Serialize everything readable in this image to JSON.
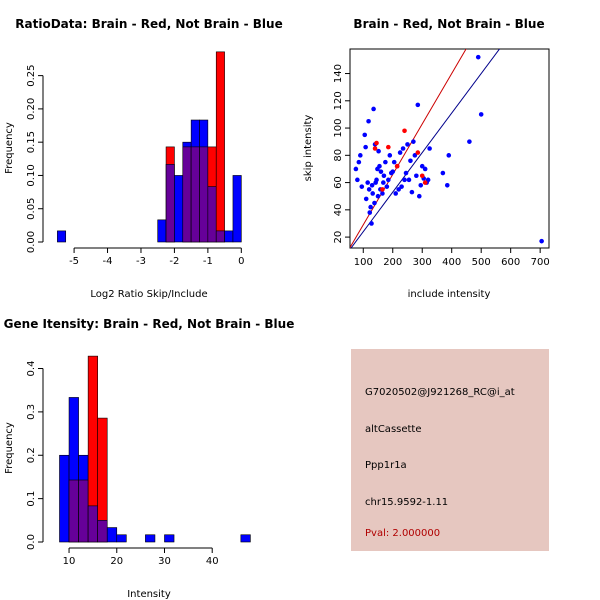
{
  "colors": {
    "brain": "#ff0000",
    "not_brain": "#0000ff",
    "overlap": "#660099",
    "panel_bg": "#e6c7c0",
    "pval_text": "#b00000"
  },
  "chart_data": [
    {
      "type": "bar",
      "title": "RatioData: Brain - Red, Not Brain - Blue",
      "xlabel": "Log2 Ratio Skip/Include",
      "ylabel": "Frequency",
      "xlim": [
        -5.75,
        0.2
      ],
      "ylim": [
        0,
        0.29
      ],
      "x_ticks": [
        -5,
        -4,
        -3,
        -2,
        -1,
        0
      ],
      "y_ticks": [
        0.0,
        0.05,
        0.1,
        0.15,
        0.2,
        0.25
      ],
      "y_tick_labels": [
        "0.00",
        "0.05",
        "0.10",
        "0.15",
        "0.20",
        "0.25"
      ],
      "bin_width": 0.25,
      "series": [
        {
          "name": "Not Brain",
          "color": "blue",
          "bins": [
            {
              "start": -5.5,
              "value": 0.0167
            },
            {
              "start": -2.5,
              "value": 0.0333
            },
            {
              "start": -2.25,
              "value": 0.1167
            },
            {
              "start": -2.0,
              "value": 0.1
            },
            {
              "start": -1.75,
              "value": 0.15
            },
            {
              "start": -1.5,
              "value": 0.1833
            },
            {
              "start": -1.25,
              "value": 0.1833
            },
            {
              "start": -1.0,
              "value": 0.0833
            },
            {
              "start": -0.75,
              "value": 0.0167
            },
            {
              "start": -0.5,
              "value": 0.0167
            },
            {
              "start": -0.25,
              "value": 0.1
            }
          ]
        },
        {
          "name": "Brain",
          "color": "red",
          "bins": [
            {
              "start": -2.25,
              "value": 0.1429
            },
            {
              "start": -1.75,
              "value": 0.1429
            },
            {
              "start": -1.5,
              "value": 0.1429
            },
            {
              "start": -1.25,
              "value": 0.1429
            },
            {
              "start": -1.0,
              "value": 0.1429
            },
            {
              "start": -0.75,
              "value": 0.2857
            }
          ]
        }
      ]
    },
    {
      "type": "scatter",
      "title": "Brain - Red, Not Brain - Blue",
      "xlabel": "include intensity",
      "ylabel": "skip intensity",
      "xlim": [
        55,
        730
      ],
      "ylim": [
        12,
        158
      ],
      "x_ticks": [
        100,
        200,
        300,
        400,
        500,
        600,
        700
      ],
      "y_ticks": [
        20,
        40,
        60,
        80,
        100,
        120,
        140
      ],
      "lines": [
        {
          "name": "Brain fit",
          "color": "red",
          "slope": 0.37,
          "intercept": -8
        },
        {
          "name": "Not Brain fit",
          "color": "blue",
          "slope": 0.29,
          "intercept": -5
        }
      ],
      "series": [
        {
          "name": "Not Brain",
          "color": "blue",
          "points": [
            [
              75,
              70
            ],
            [
              80,
              62
            ],
            [
              85,
              75
            ],
            [
              90,
              80
            ],
            [
              95,
              57
            ],
            [
              105,
              95
            ],
            [
              108,
              86
            ],
            [
              110,
              48
            ],
            [
              115,
              60
            ],
            [
              118,
              105
            ],
            [
              120,
              55
            ],
            [
              122,
              38
            ],
            [
              125,
              42
            ],
            [
              128,
              30
            ],
            [
              130,
              58
            ],
            [
              132,
              52
            ],
            [
              135,
              114
            ],
            [
              138,
              45
            ],
            [
              140,
              88
            ],
            [
              142,
              60
            ],
            [
              145,
              62
            ],
            [
              148,
              70
            ],
            [
              150,
              50
            ],
            [
              152,
              83
            ],
            [
              155,
              72
            ],
            [
              158,
              55
            ],
            [
              160,
              68
            ],
            [
              165,
              52
            ],
            [
              168,
              60
            ],
            [
              170,
              65
            ],
            [
              175,
              75
            ],
            [
              180,
              57
            ],
            [
              185,
              62
            ],
            [
              190,
              80
            ],
            [
              195,
              67
            ],
            [
              200,
              68
            ],
            [
              205,
              75
            ],
            [
              210,
              52
            ],
            [
              215,
              72
            ],
            [
              220,
              55
            ],
            [
              225,
              82
            ],
            [
              230,
              57
            ],
            [
              235,
              85
            ],
            [
              240,
              62
            ],
            [
              245,
              67
            ],
            [
              250,
              88
            ],
            [
              255,
              62
            ],
            [
              260,
              76
            ],
            [
              265,
              53
            ],
            [
              270,
              90
            ],
            [
              275,
              80
            ],
            [
              280,
              65
            ],
            [
              285,
              117
            ],
            [
              290,
              50
            ],
            [
              295,
              58
            ],
            [
              300,
              72
            ],
            [
              305,
              63
            ],
            [
              310,
              70
            ],
            [
              315,
              60
            ],
            [
              320,
              62
            ],
            [
              325,
              85
            ],
            [
              370,
              67
            ],
            [
              385,
              58
            ],
            [
              390,
              80
            ],
            [
              460,
              90
            ],
            [
              490,
              152
            ],
            [
              500,
              110
            ],
            [
              705,
              17
            ]
          ]
        },
        {
          "name": "Brain",
          "color": "red",
          "points": [
            [
              140,
              85
            ],
            [
              145,
              89
            ],
            [
              165,
              55
            ],
            [
              185,
              86
            ],
            [
              215,
              72
            ],
            [
              240,
              98
            ],
            [
              285,
              82
            ],
            [
              300,
              65
            ],
            [
              310,
              60
            ]
          ]
        }
      ]
    },
    {
      "type": "bar",
      "title": "Gene Itensity: Brain - Red, Not Brain - Blue",
      "xlabel": "Intensity",
      "ylabel": "Frequency",
      "xlim": [
        5.8,
        47.5
      ],
      "ylim": [
        0,
        0.445
      ],
      "x_ticks": [
        10,
        20,
        30,
        40
      ],
      "y_ticks": [
        0.0,
        0.1,
        0.2,
        0.3,
        0.4
      ],
      "y_tick_labels": [
        "0.0",
        "0.1",
        "0.2",
        "0.3",
        "0.4"
      ],
      "bin_width": 2,
      "series": [
        {
          "name": "Not Brain",
          "color": "blue",
          "bins": [
            {
              "start": 8,
              "value": 0.2
            },
            {
              "start": 10,
              "value": 0.3333
            },
            {
              "start": 12,
              "value": 0.2
            },
            {
              "start": 14,
              "value": 0.0833
            },
            {
              "start": 16,
              "value": 0.05
            },
            {
              "start": 18,
              "value": 0.0333
            },
            {
              "start": 20,
              "value": 0.0167
            },
            {
              "start": 26,
              "value": 0.0167
            },
            {
              "start": 30,
              "value": 0.0167
            },
            {
              "start": 46,
              "value": 0.0167
            }
          ]
        },
        {
          "name": "Brain",
          "color": "red",
          "bins": [
            {
              "start": 10,
              "value": 0.1429
            },
            {
              "start": 12,
              "value": 0.1429
            },
            {
              "start": 14,
              "value": 0.4286
            },
            {
              "start": 16,
              "value": 0.2857
            }
          ]
        }
      ]
    }
  ],
  "info_panel": {
    "probe_id": "G7020502@J921268_RC@i_at",
    "event_type": "altCassette",
    "gene": "Ppp1r1a",
    "location": "chr15.9592-1.11",
    "pval": "Pval: 2.000000"
  }
}
